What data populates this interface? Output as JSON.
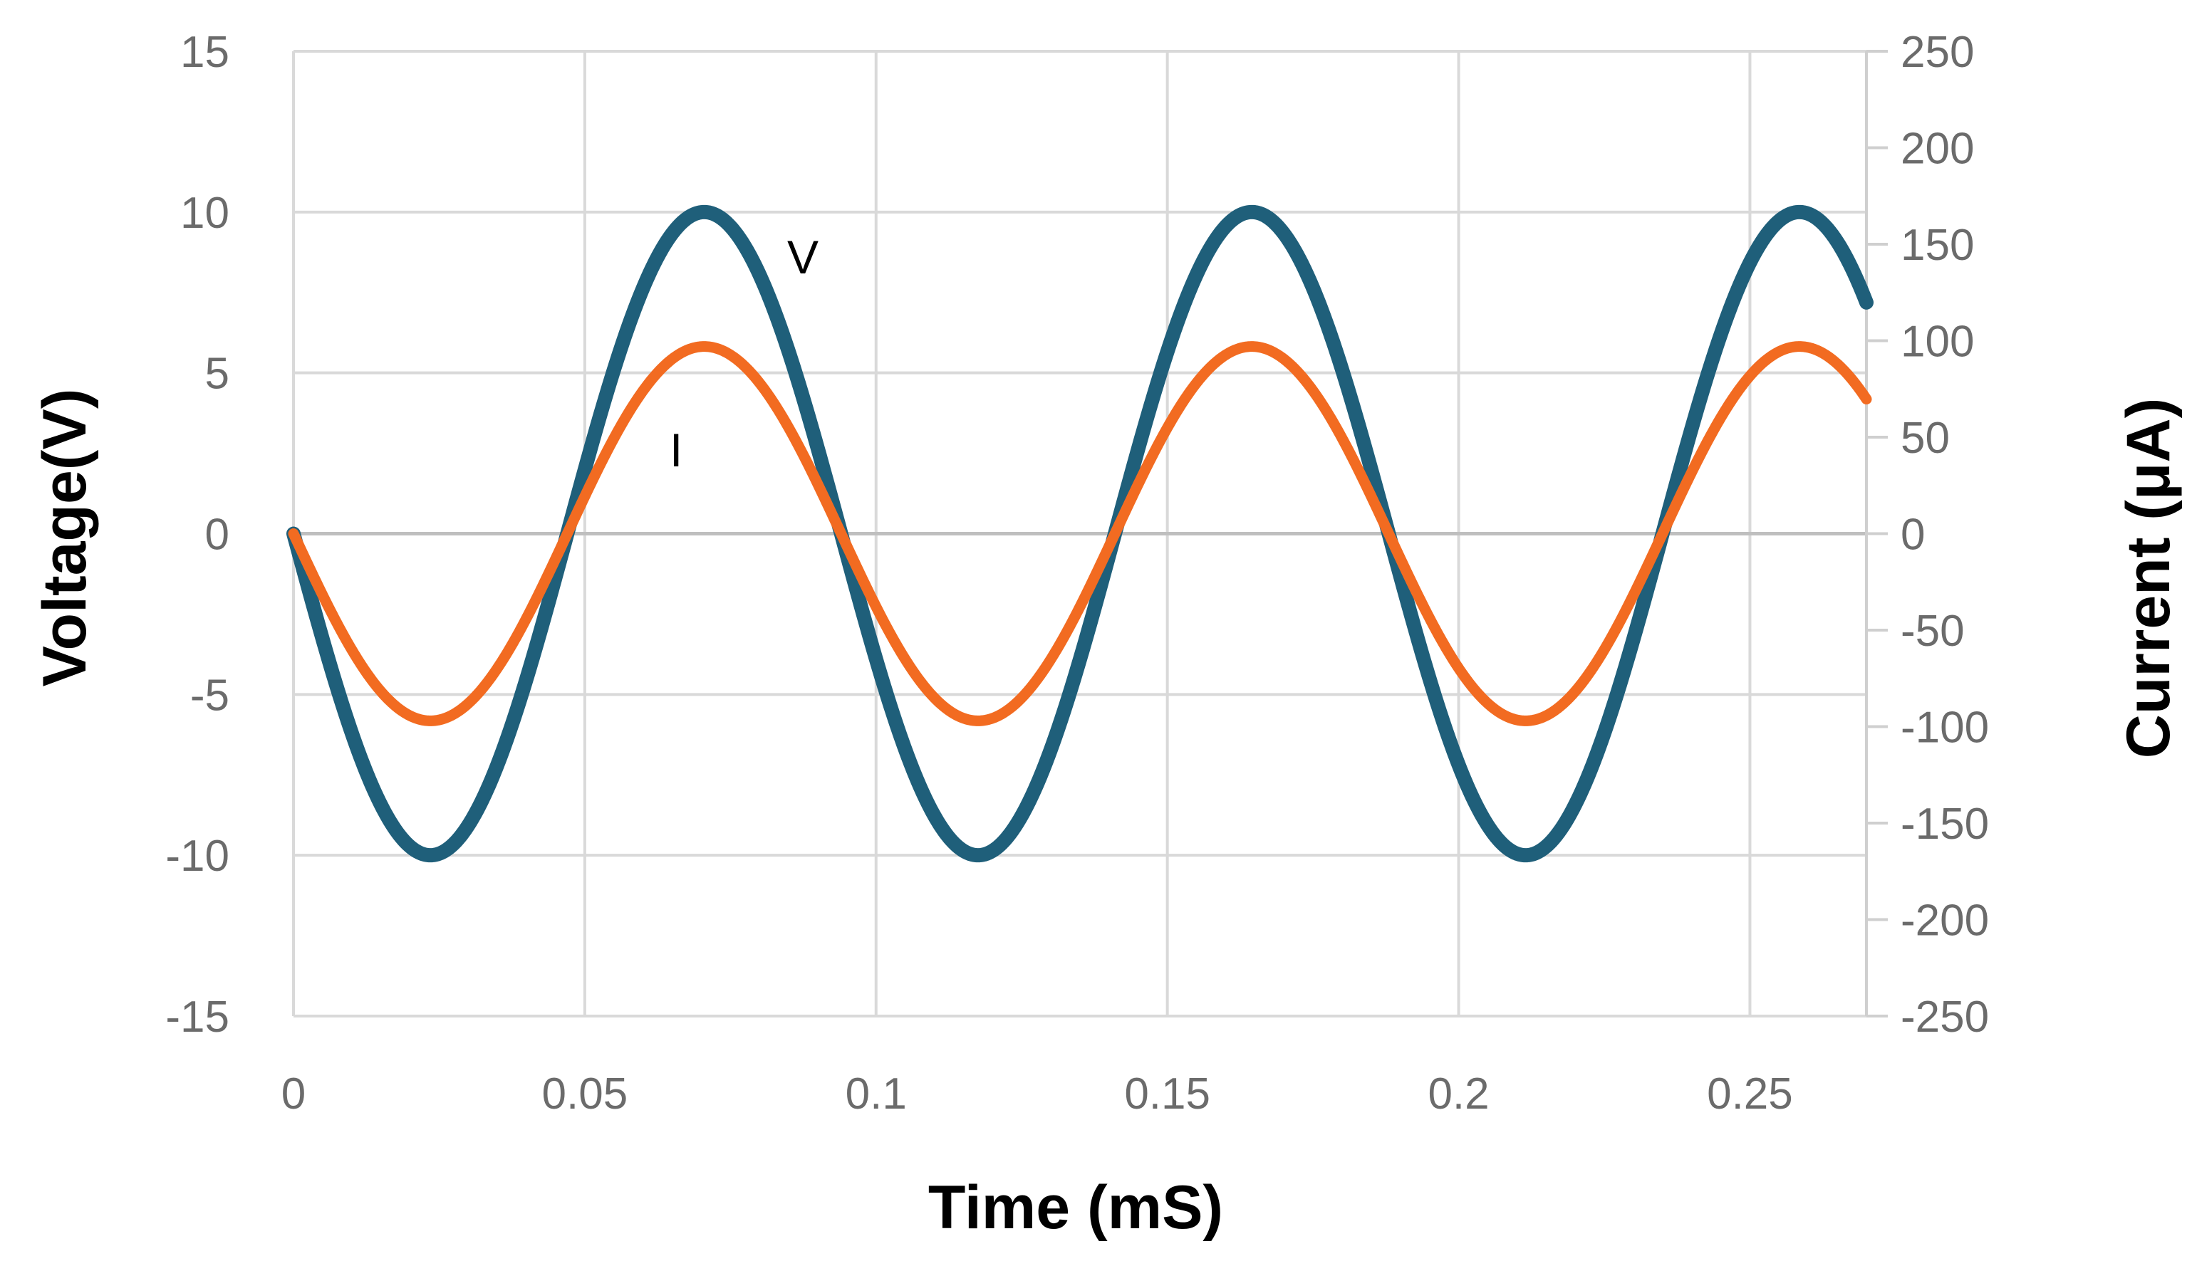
{
  "chart_data": {
    "type": "line",
    "xlabel": "Time (mS)",
    "ylabel": "Voltage(V)",
    "y2label": "Current (μA)",
    "xlim": [
      0,
      0.27
    ],
    "ylim": [
      -15,
      15
    ],
    "y2lim": [
      -250,
      250
    ],
    "x_ticks": [
      "0",
      "0.05",
      "0.1",
      "0.15",
      "0.2",
      "0.25"
    ],
    "x_tick_values": [
      0,
      0.05,
      0.1,
      0.15,
      0.2,
      0.25
    ],
    "y_ticks": [
      "15",
      "10",
      "5",
      "0",
      "-5",
      "-10",
      "-15"
    ],
    "y_tick_values": [
      15,
      10,
      5,
      0,
      -5,
      -10,
      -15
    ],
    "y2_ticks": [
      "250",
      "200",
      "150",
      "100",
      "50",
      "0",
      "-50",
      "-100",
      "-150",
      "-200",
      "-250"
    ],
    "y2_tick_values": [
      250,
      200,
      150,
      100,
      50,
      0,
      -50,
      -100,
      -150,
      -200,
      -250
    ],
    "grid": true,
    "series": [
      {
        "name": "V",
        "axis": "left",
        "color": "#1f5f7a",
        "waveform": "sine",
        "amplitude": 10,
        "period_ms": 0.094,
        "zero_crossings_rising_ms": [
          0.047,
          0.141,
          0.235
        ],
        "peaks_ms": [
          0.0705,
          0.1645,
          0.2585
        ],
        "troughs_ms": [
          0.0235,
          0.1175,
          0.2115
        ]
      },
      {
        "name": "I",
        "axis": "right",
        "color": "#f26b21",
        "waveform": "sine",
        "amplitude": 97,
        "period_ms": 0.094,
        "zero_crossings_rising_ms": [
          0.047,
          0.141,
          0.235
        ],
        "peaks_ms": [
          0.0705,
          0.1645,
          0.2585
        ],
        "troughs_ms": [
          0.0235,
          0.1175,
          0.2115
        ]
      }
    ]
  }
}
